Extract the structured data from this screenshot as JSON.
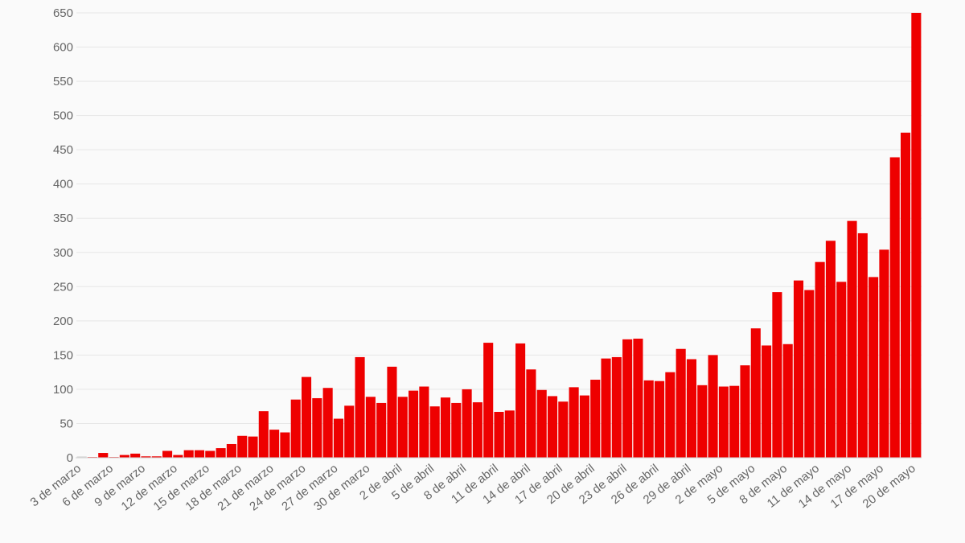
{
  "chart_data": {
    "type": "bar",
    "title": "",
    "xlabel": "",
    "ylabel": "",
    "ylim": [
      0,
      650
    ],
    "yticks": [
      0,
      50,
      100,
      150,
      200,
      250,
      300,
      350,
      400,
      450,
      500,
      550,
      600,
      650
    ],
    "grid": "horizontal",
    "legend": "none",
    "bar_color": "#ee0000",
    "first_bar_color": "#d9d9d9",
    "x_tick_labels": [
      "3 de marzo",
      "6 de marzo",
      "9 de marzo",
      "12 de marzo",
      "15 de marzo",
      "18 de marzo",
      "21 de marzo",
      "24 de marzo",
      "27 de marzo",
      "30 de marzo",
      "2 de abril",
      "5 de abril",
      "8 de abril",
      "11 de abril",
      "14 de abril",
      "17 de abril",
      "20 de abril",
      "23 de abril",
      "26 de abril",
      "29 de abril",
      "2 de mayo",
      "5 de mayo",
      "8 de mayo",
      "11 de mayo",
      "14 de mayo",
      "17 de mayo",
      "20 de mayo"
    ],
    "values": [
      2,
      1,
      7,
      1,
      4,
      6,
      2,
      2,
      10,
      4,
      11,
      11,
      10,
      14,
      20,
      32,
      31,
      68,
      41,
      37,
      85,
      118,
      87,
      102,
      57,
      76,
      147,
      89,
      80,
      133,
      89,
      98,
      104,
      75,
      88,
      80,
      100,
      81,
      168,
      67,
      69,
      167,
      129,
      99,
      90,
      82,
      103,
      91,
      114,
      145,
      147,
      173,
      174,
      113,
      112,
      125,
      159,
      144,
      106,
      150,
      104,
      105,
      135,
      189,
      164,
      242,
      166,
      259,
      245,
      286,
      317,
      257,
      346,
      328,
      264,
      304,
      439,
      475,
      650
    ]
  }
}
